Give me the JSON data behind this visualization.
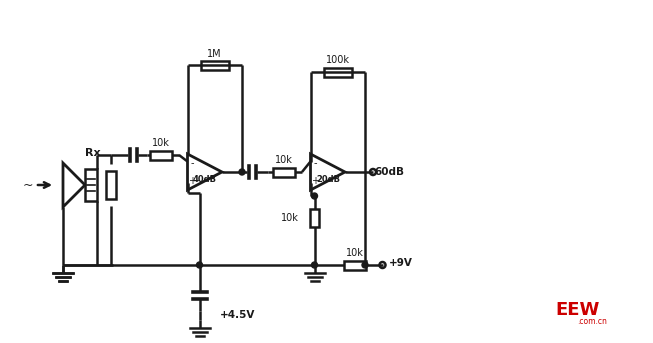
{
  "bg_color": "#ffffff",
  "line_color": "#1a1a1a",
  "line_width": 1.8,
  "figsize": [
    6.53,
    3.43
  ],
  "dpi": 100,
  "watermark_color": "#cc0000",
  "labels": {
    "Rx": "Rx",
    "10k_1": "10k",
    "10k_2": "10k",
    "10k_3": "10k",
    "10k_4": "10k",
    "1M": "1M",
    "100k": "100k",
    "40dB": "40dB",
    "20dB": "20dB",
    "60dB": "60dB",
    "plus45": "+4.5V",
    "plus9": "+9V"
  },
  "eew_text": "EEW",
  "eew_sub": ".com.cn"
}
